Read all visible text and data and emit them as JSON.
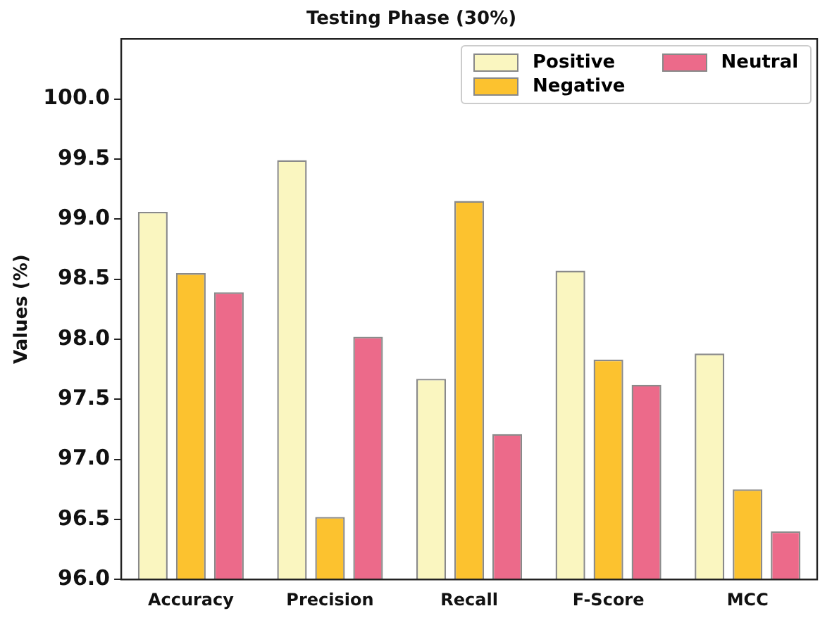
{
  "chart_data": {
    "type": "bar",
    "title": "Testing Phase (30%)",
    "ylabel": "Values (%)",
    "categories": [
      "Accuracy",
      "Precision",
      "Recall",
      "F-Score",
      "MCC"
    ],
    "series": [
      {
        "name": "Positive",
        "color": "#faf6c0",
        "values": [
          99.06,
          99.49,
          97.67,
          98.57,
          97.88
        ]
      },
      {
        "name": "Negative",
        "color": "#fcc22f",
        "values": [
          98.55,
          96.52,
          99.15,
          97.83,
          96.75
        ]
      },
      {
        "name": "Neutral",
        "color": "#ec6a8a",
        "values": [
          98.39,
          98.02,
          97.21,
          97.62,
          96.4
        ]
      }
    ],
    "ylim": [
      96.0,
      100.5
    ],
    "yticks": [
      {
        "value": 96.0,
        "label": "96.0"
      },
      {
        "value": 96.5,
        "label": "96.5"
      },
      {
        "value": 97.0,
        "label": "97.0"
      },
      {
        "value": 97.5,
        "label": "97.5"
      },
      {
        "value": 98.0,
        "label": "98.0"
      },
      {
        "value": 98.5,
        "label": "98.5"
      },
      {
        "value": 99.0,
        "label": "99.0"
      },
      {
        "value": 99.5,
        "label": "99.5"
      },
      {
        "value": 100.0,
        "label": "100.0"
      }
    ],
    "grid": false,
    "legend": "top right"
  }
}
